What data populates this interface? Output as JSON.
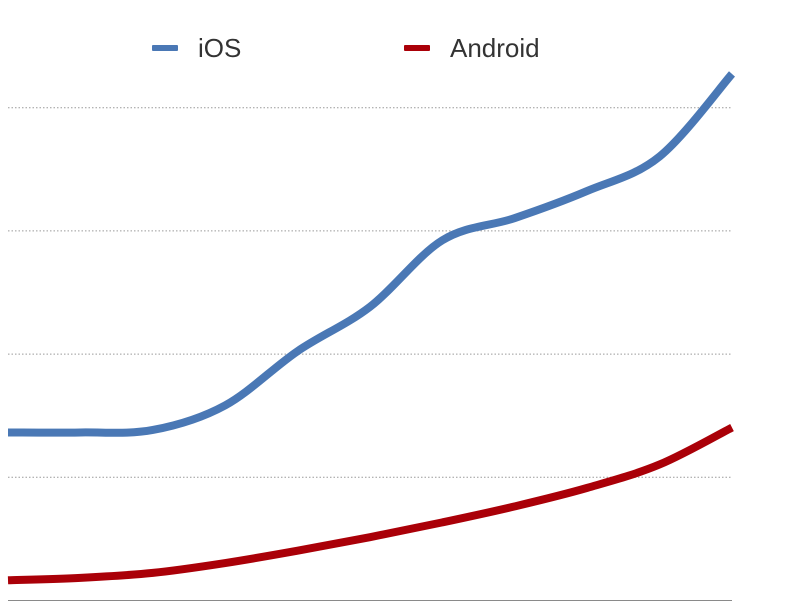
{
  "chart_data": {
    "type": "line",
    "title": "",
    "xlabel": "",
    "ylabel": "",
    "grid": true,
    "legend_position": "top",
    "x": [
      0,
      1,
      2,
      3,
      4,
      5,
      6,
      7,
      8,
      9,
      10
    ],
    "ylim": [
      0,
      4
    ],
    "series": [
      {
        "name": "iOS",
        "color": "#4a78b5",
        "values": [
          1.36,
          1.36,
          1.38,
          1.58,
          2.02,
          2.38,
          2.92,
          3.1,
          3.32,
          3.6,
          4.27
        ]
      },
      {
        "name": "Android",
        "color": "#aa0008",
        "values": [
          0.16,
          0.18,
          0.22,
          0.3,
          0.4,
          0.51,
          0.63,
          0.76,
          0.91,
          1.1,
          1.4
        ]
      }
    ]
  }
}
